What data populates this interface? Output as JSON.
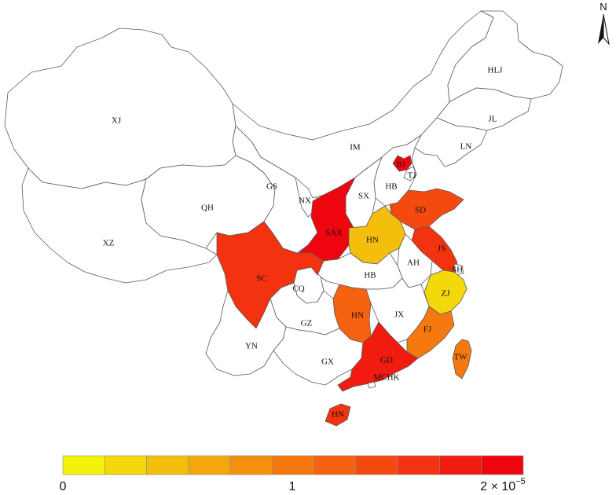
{
  "map": {
    "labels": {
      "XJ": "XJ",
      "XZ": "XZ",
      "QH": "QH",
      "GS": "GS",
      "NX": "NX",
      "IM": "IM",
      "HLJ": "HLJ",
      "JL": "JL",
      "LN": "LN",
      "BJ": "BJ",
      "TJ": "TJ",
      "HB_N": "HB",
      "SX": "SX",
      "SD": "SD",
      "SAX": "SAX",
      "HN_C": "HN",
      "JS": "JS",
      "AH": "AH",
      "SH": "SH",
      "HB_C": "HB",
      "SC": "SC",
      "CQ": "CQ",
      "ZJ": "ZJ",
      "HN_S": "HN",
      "JX": "JX",
      "GZ": "GZ",
      "FJ": "FJ",
      "YN": "YN",
      "GX": "GX",
      "GD": "GD",
      "TW": "TW",
      "MCHK": "MCHK",
      "HN_I": "HN"
    },
    "no_data_color": "#ffffff",
    "province_values": {
      "BJ": 2.0,
      "SAX": 2.0,
      "GD": 1.85,
      "SC": 1.6,
      "HN_I": 1.55,
      "JS": 1.5,
      "SD": 1.3,
      "HN_S": 1.15,
      "TW": 1.0,
      "FJ": 0.95,
      "HN_C": 0.3,
      "ZJ": 0.1
    },
    "north_letter": "N"
  },
  "legend": {
    "colors": [
      "#f2f20a",
      "#f3d80b",
      "#f4be0c",
      "#f4a60d",
      "#f5900e",
      "#f5790f",
      "#f56210",
      "#f44a10",
      "#f33310",
      "#f11b10",
      "#ef0510"
    ],
    "tick_0": "0",
    "tick_1": "1",
    "tick_2": "2 × 10",
    "tick_2_exp": "−5"
  }
}
